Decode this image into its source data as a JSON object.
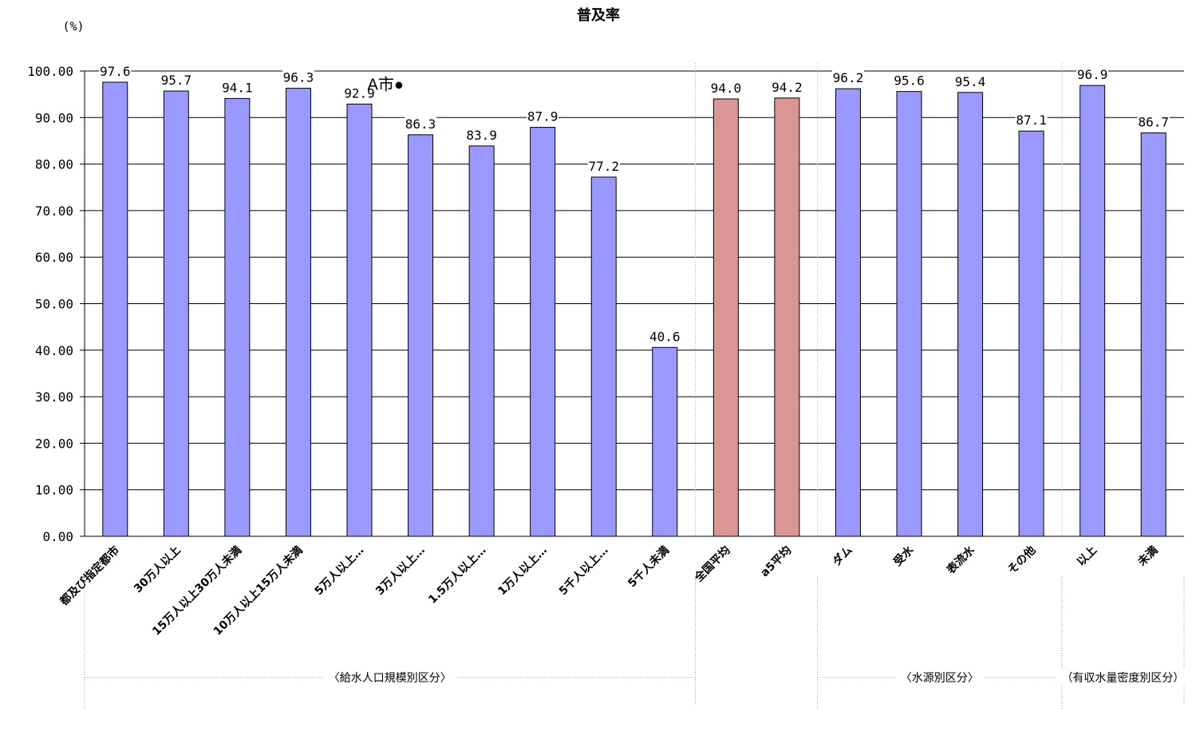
{
  "chart_data": {
    "type": "bar",
    "title": "普及率",
    "unit_label": "(%)",
    "ylim": [
      0,
      100
    ],
    "ytick_step": 10,
    "ytick_decimals": 2,
    "grid": true,
    "legend": "none",
    "categories": [
      "都及び指定都市",
      "30万人以上",
      "15万人以上30万人未満",
      "10万人以上15万人未満",
      "5万人以上…",
      "3万人以上…",
      "1.5万人以上…",
      "1万人以上…",
      "5千人以上…",
      "5千人未満",
      "全国平均",
      "a5平均",
      "ダム",
      "受水",
      "表流水",
      "その他",
      "以上",
      "未満"
    ],
    "values": [
      97.6,
      95.7,
      94.1,
      96.3,
      92.9,
      86.3,
      83.9,
      87.9,
      77.2,
      40.6,
      94.0,
      94.2,
      96.2,
      95.6,
      95.4,
      87.1,
      96.9,
      86.7
    ],
    "data_labels": [
      "97.6",
      "95.7",
      "94.1",
      "96.3",
      "92.9",
      "86.3",
      "83.9",
      "87.9",
      "77.2",
      "40.6",
      "94.0",
      "94.2",
      "96.2",
      "95.6",
      "95.4",
      "87.1",
      "96.9",
      "86.7"
    ],
    "colors": {
      "default": "#9999ff",
      "highlight": "#d99694",
      "highlight_indices": [
        10,
        11
      ]
    },
    "groups": [
      {
        "label": "〈給水人口規模別区分〉",
        "first": 0,
        "last": 9
      },
      {
        "label": "〈水源別区分〉",
        "first": 12,
        "last": 15
      },
      {
        "label": "（有収水量密度別区分）",
        "first": 16,
        "last": 17
      }
    ],
    "annotation": {
      "text": "A市●",
      "category_index": 4,
      "value": 92.9
    }
  }
}
